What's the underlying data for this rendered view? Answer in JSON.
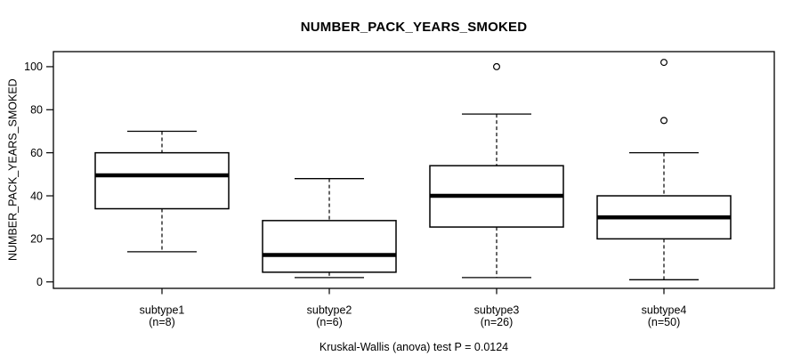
{
  "chart_data": {
    "type": "boxplot",
    "title": "NUMBER_PACK_YEARS_SMOKED",
    "ylabel": "NUMBER_PACK_YEARS_SMOKED",
    "xlabel": "",
    "note": "Kruskal-Wallis (anova) test P = 0.0124",
    "ylim": [
      -3,
      107
    ],
    "yticks": [
      0,
      20,
      40,
      60,
      80,
      100
    ],
    "grid": false,
    "legend": "none",
    "groups": [
      {
        "label": "subtype1",
        "sublabel": "(n=8)",
        "n": 8,
        "whisker_low": 14,
        "q1": 34,
        "median": 49.5,
        "q3": 60,
        "whisker_high": 70,
        "outliers": []
      },
      {
        "label": "subtype2",
        "sublabel": "(n=6)",
        "n": 6,
        "whisker_low": 2,
        "q1": 4.5,
        "median": 12.5,
        "q3": 28.5,
        "whisker_high": 48,
        "outliers": []
      },
      {
        "label": "subtype3",
        "sublabel": "(n=26)",
        "n": 26,
        "whisker_low": 2,
        "q1": 25.5,
        "median": 40,
        "q3": 54,
        "whisker_high": 78,
        "outliers": [
          100
        ]
      },
      {
        "label": "subtype4",
        "sublabel": "(n=50)",
        "n": 50,
        "whisker_low": 1,
        "q1": 20,
        "median": 30,
        "q3": 40,
        "whisker_high": 60,
        "outliers": [
          75,
          102
        ]
      }
    ],
    "colors": {
      "line": "#000000",
      "box_fill": "#ffffff",
      "background": "#ffffff"
    }
  }
}
